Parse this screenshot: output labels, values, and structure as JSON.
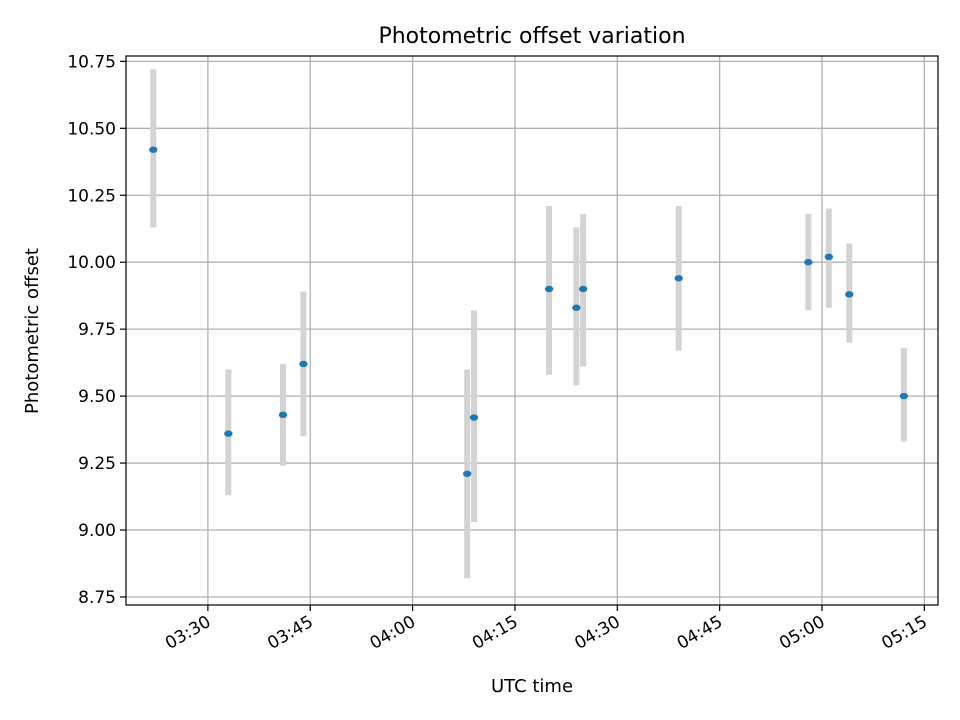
{
  "chart_data": {
    "type": "scatter",
    "title": "Photometric offset variation",
    "xlabel": "UTC time",
    "ylabel": "Photometric offset",
    "grid": true,
    "x_ticks": [
      "03:30",
      "03:45",
      "04:00",
      "04:15",
      "04:30",
      "04:45",
      "05:00",
      "05:15"
    ],
    "y_ticks": [
      "8.75",
      "9.00",
      "9.25",
      "9.50",
      "9.75",
      "10.00",
      "10.25",
      "10.50",
      "10.75"
    ],
    "xlim": [
      "03:18",
      "05:17"
    ],
    "ylim": [
      8.72,
      10.77
    ],
    "series": [
      {
        "style": "points-with-errorbars",
        "point_color": "#1f77b4",
        "errorbar_color": "#d3d3d3",
        "points": [
          {
            "x": "03:22",
            "y": 10.42,
            "ylow": 10.13,
            "yhigh": 10.72
          },
          {
            "x": "03:33",
            "y": 9.36,
            "ylow": 9.13,
            "yhigh": 9.6
          },
          {
            "x": "03:41",
            "y": 9.43,
            "ylow": 9.24,
            "yhigh": 9.62
          },
          {
            "x": "03:44",
            "y": 9.62,
            "ylow": 9.35,
            "yhigh": 9.89
          },
          {
            "x": "04:08",
            "y": 9.21,
            "ylow": 8.82,
            "yhigh": 9.6
          },
          {
            "x": "04:09",
            "y": 9.42,
            "ylow": 9.03,
            "yhigh": 9.82
          },
          {
            "x": "04:20",
            "y": 9.9,
            "ylow": 9.58,
            "yhigh": 10.21
          },
          {
            "x": "04:24",
            "y": 9.83,
            "ylow": 9.54,
            "yhigh": 10.13
          },
          {
            "x": "04:25",
            "y": 9.9,
            "ylow": 9.61,
            "yhigh": 10.18
          },
          {
            "x": "04:39",
            "y": 9.94,
            "ylow": 9.67,
            "yhigh": 10.21
          },
          {
            "x": "04:58",
            "y": 10.0,
            "ylow": 9.82,
            "yhigh": 10.18
          },
          {
            "x": "05:01",
            "y": 10.02,
            "ylow": 9.83,
            "yhigh": 10.2
          },
          {
            "x": "05:04",
            "y": 9.88,
            "ylow": 9.7,
            "yhigh": 10.07
          },
          {
            "x": "05:12",
            "y": 9.5,
            "ylow": 9.33,
            "yhigh": 9.68
          }
        ]
      }
    ]
  }
}
